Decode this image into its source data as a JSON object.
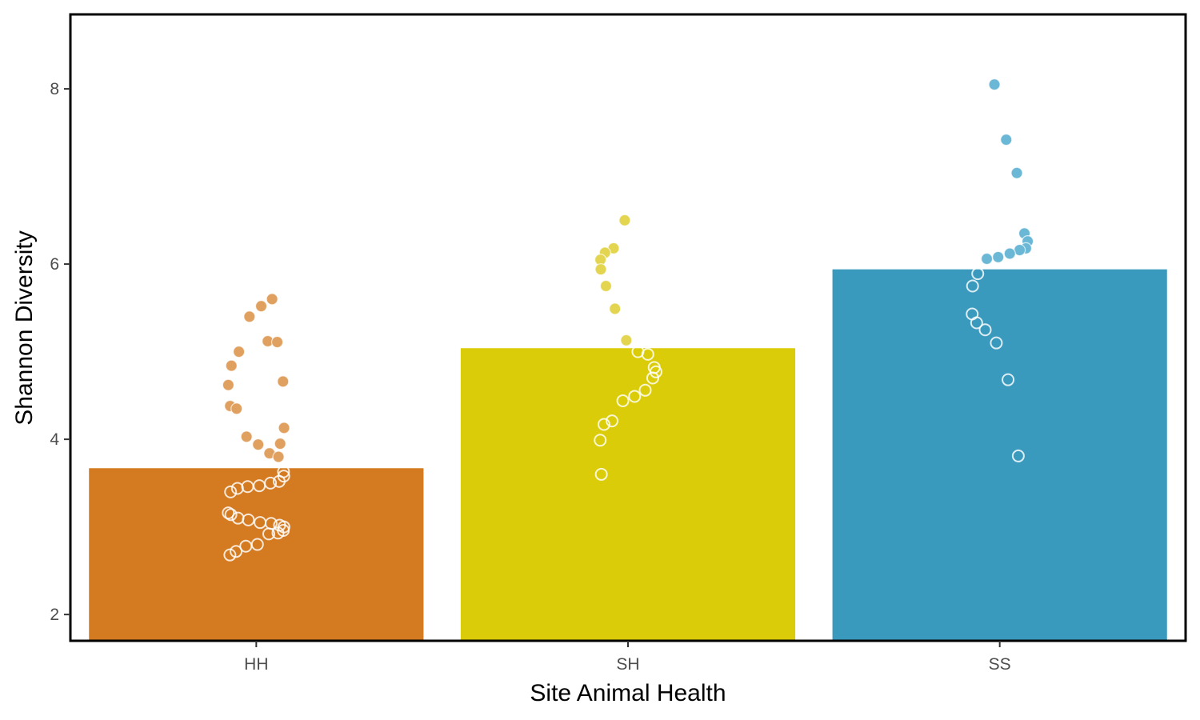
{
  "chart_data": {
    "type": "bar",
    "xlabel": "Site Animal Health",
    "ylabel": "Shannon Diversity",
    "categories": [
      "HH",
      "SH",
      "SS"
    ],
    "values": [
      3.67,
      5.04,
      5.94
    ],
    "colors": [
      "#D47A20",
      "#DBCC0A",
      "#3A9ABD"
    ],
    "point_colors": [
      "#E0A060",
      "#E3D550",
      "#6BB8D6"
    ],
    "ylim": [
      1.7,
      8.85
    ],
    "yticks": [
      2,
      4,
      6,
      8
    ],
    "grid": false,
    "legend": "none",
    "points": [
      [
        5.12,
        5.11,
        4.66,
        4.13,
        3.95,
        5.6,
        5.52,
        5.4,
        5.0,
        4.84,
        4.62,
        4.38,
        4.35,
        4.03,
        3.94,
        3.84,
        3.8,
        3.63,
        3.58,
        3.52,
        3.5,
        3.47,
        3.46,
        3.44,
        3.4,
        3.16,
        3.14,
        3.1,
        3.08,
        3.05,
        3.04,
        3.02,
        3.0,
        2.96,
        2.93,
        2.92,
        2.8,
        2.78,
        2.72,
        2.68
      ],
      [
        6.5,
        6.18,
        6.13,
        6.05,
        5.94,
        5.75,
        5.49,
        5.13,
        5.0,
        4.97,
        4.82,
        4.77,
        4.7,
        4.56,
        4.49,
        4.44,
        4.21,
        4.17,
        3.99,
        3.6
      ],
      [
        8.05,
        7.42,
        7.04,
        6.35,
        6.26,
        6.18,
        6.16,
        6.12,
        6.08,
        6.06,
        5.89,
        5.75,
        5.43,
        5.33,
        5.25,
        5.1,
        4.68,
        3.81
      ]
    ]
  }
}
